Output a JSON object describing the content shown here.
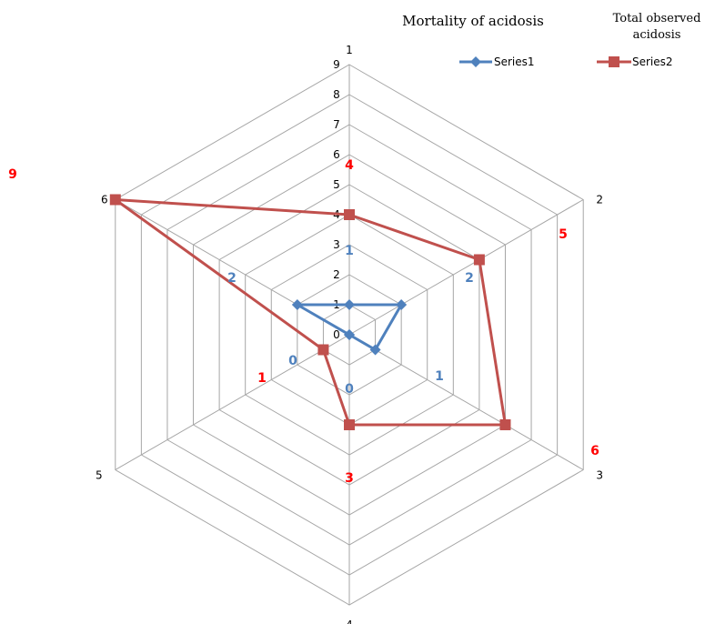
{
  "chart_data": {
    "type": "radar",
    "categories": [
      "1",
      "2",
      "3",
      "4",
      "5",
      "6"
    ],
    "r_ticks": [
      "0",
      "1",
      "2",
      "3",
      "4",
      "5",
      "6",
      "7",
      "8",
      "9"
    ],
    "rlim": [
      0,
      9
    ],
    "grid": true,
    "legend_position": "top-right",
    "annotations": {
      "header_left": "Mortality of acidosis",
      "header_right_line1": "Total observed",
      "header_right_line2": "acidosis"
    },
    "series": [
      {
        "name": "Series1",
        "color": "#4f81bd",
        "marker": "diamond",
        "values": [
          1,
          2,
          1,
          0,
          0,
          2
        ]
      },
      {
        "name": "Series2",
        "color": "#c0504d",
        "marker": "square",
        "values": [
          4,
          5,
          6,
          3,
          1,
          9
        ]
      }
    ],
    "series1_value_labels": [
      "1",
      "2",
      "1",
      "0",
      "0",
      "2"
    ],
    "series2_value_labels": [
      "4",
      "5",
      "6",
      "3",
      "1",
      "9"
    ]
  }
}
